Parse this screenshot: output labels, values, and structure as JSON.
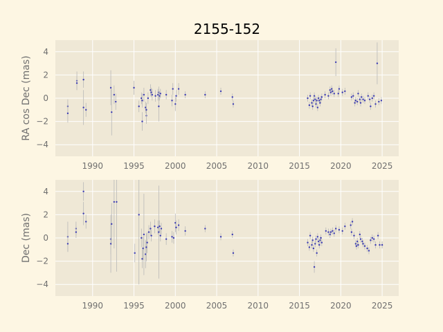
{
  "chart_data": {
    "title": "2155-152",
    "colors": {
      "figure_bg": "#fdf6e3",
      "axes_bg": "#efe8d6",
      "grid": "#ffffff",
      "point": "#3b3bb3",
      "errorbar": "#b8b8b8",
      "text": "#6f6f6f"
    },
    "grid": true,
    "panels": [
      {
        "type": "scatter",
        "ylabel": "RA cos Dec (mas)",
        "xlim": [
          1985.5,
          2027
        ],
        "ylim": [
          -5,
          5
        ],
        "xticks": [
          1990,
          1995,
          2000,
          2005,
          2010,
          2015,
          2020,
          2025
        ],
        "yticks": [
          -4,
          -2,
          0,
          2,
          4
        ],
        "points": [
          [
            1987.0,
            -0.7,
            0.6
          ],
          [
            1987.0,
            -1.3,
            0.8
          ],
          [
            1988.1,
            1.5,
            0.8
          ],
          [
            1988.1,
            1.3,
            0.6
          ],
          [
            1988.9,
            1.6,
            0.7
          ],
          [
            1988.9,
            -0.8,
            1.5
          ],
          [
            1989.2,
            -1.0,
            0.6
          ],
          [
            1992.2,
            0.9,
            1.5
          ],
          [
            1992.3,
            -1.2,
            2.0
          ],
          [
            1992.6,
            0.3,
            0.8
          ],
          [
            1992.8,
            -0.3,
            0.7
          ],
          [
            1995.0,
            0.9,
            0.6
          ],
          [
            1995.6,
            -0.7,
            0.5
          ],
          [
            1995.9,
            0.0,
            0.5
          ],
          [
            1996.0,
            -0.2,
            0.6
          ],
          [
            1996.0,
            -2.0,
            0.8
          ],
          [
            1996.2,
            0.3,
            0.6
          ],
          [
            1996.4,
            -0.8,
            0.5
          ],
          [
            1996.5,
            -1.5,
            0.7
          ],
          [
            1996.5,
            -1.0,
            0.6
          ],
          [
            1996.7,
            0.0,
            0.5
          ],
          [
            1997.0,
            0.7,
            0.5
          ],
          [
            1997.1,
            0.5,
            0.4
          ],
          [
            1997.2,
            0.3,
            0.5
          ],
          [
            1997.6,
            0.2,
            0.5
          ],
          [
            1997.9,
            0.3,
            0.5
          ],
          [
            1998.0,
            0.5,
            0.5
          ],
          [
            1998.0,
            -0.7,
            1.3
          ],
          [
            1998.1,
            0.2,
            0.4
          ],
          [
            1998.2,
            0.4,
            0.4
          ],
          [
            1998.9,
            0.3,
            0.4
          ],
          [
            1999.6,
            -0.2,
            0.5
          ],
          [
            1999.7,
            0.8,
            0.5
          ],
          [
            2000.0,
            -0.5,
            0.6
          ],
          [
            2000.1,
            0.2,
            0.5
          ],
          [
            2000.4,
            0.8,
            0.5
          ],
          [
            2001.2,
            0.3,
            0.3
          ],
          [
            2003.6,
            0.3,
            0.3
          ],
          [
            2005.5,
            0.6,
            0.3
          ],
          [
            2006.9,
            0.1,
            0.3
          ],
          [
            2007.0,
            -0.5,
            0.3
          ],
          [
            2016.0,
            0.0,
            0.3
          ],
          [
            2016.2,
            -0.6,
            0.3
          ],
          [
            2016.3,
            0.2,
            0.3
          ],
          [
            2016.5,
            -0.4,
            0.3
          ],
          [
            2016.6,
            -0.7,
            0.3
          ],
          [
            2016.7,
            -0.2,
            0.3
          ],
          [
            2016.8,
            0.2,
            0.3
          ],
          [
            2016.9,
            -0.1,
            0.3
          ],
          [
            2017.0,
            -0.5,
            0.3
          ],
          [
            2017.1,
            -0.2,
            0.3
          ],
          [
            2017.2,
            -0.8,
            0.3
          ],
          [
            2017.3,
            0.0,
            0.3
          ],
          [
            2017.4,
            -0.2,
            0.3
          ],
          [
            2017.5,
            -0.4,
            0.3
          ],
          [
            2017.6,
            -0.1,
            0.3
          ],
          [
            2017.7,
            0.1,
            0.3
          ],
          [
            2018.1,
            0.3,
            0.3
          ],
          [
            2018.5,
            0.2,
            0.3
          ],
          [
            2018.7,
            0.7,
            0.3
          ],
          [
            2018.8,
            0.5,
            0.3
          ],
          [
            2018.9,
            0.8,
            0.3
          ],
          [
            2019.0,
            0.6,
            0.3
          ],
          [
            2019.2,
            0.4,
            0.3
          ],
          [
            2019.4,
            3.1,
            1.2
          ],
          [
            2019.7,
            0.4,
            0.3
          ],
          [
            2019.8,
            0.8,
            0.3
          ],
          [
            2020.2,
            0.5,
            0.3
          ],
          [
            2020.5,
            0.6,
            0.3
          ],
          [
            2021.3,
            0.1,
            0.3
          ],
          [
            2021.5,
            0.2,
            0.3
          ],
          [
            2021.7,
            -0.4,
            0.3
          ],
          [
            2021.8,
            -0.2,
            0.3
          ],
          [
            2022.0,
            -0.3,
            0.3
          ],
          [
            2022.1,
            0.4,
            0.3
          ],
          [
            2022.3,
            -0.1,
            0.3
          ],
          [
            2022.4,
            -0.4,
            0.3
          ],
          [
            2022.5,
            0.1,
            0.3
          ],
          [
            2022.7,
            -0.1,
            0.3
          ],
          [
            2022.9,
            -0.2,
            0.3
          ],
          [
            2023.3,
            0.2,
            0.3
          ],
          [
            2023.5,
            -0.1,
            0.3
          ],
          [
            2023.6,
            -0.7,
            0.3
          ],
          [
            2023.8,
            0.0,
            0.3
          ],
          [
            2024.0,
            0.2,
            0.3
          ],
          [
            2024.2,
            -0.5,
            0.3
          ],
          [
            2024.4,
            3.0,
            1.8
          ],
          [
            2024.6,
            -0.3,
            0.3
          ],
          [
            2024.9,
            -0.2,
            0.3
          ]
        ]
      },
      {
        "type": "scatter",
        "ylabel": "Dec (mas)",
        "xlim": [
          1985.5,
          2027
        ],
        "ylim": [
          -5,
          5
        ],
        "xticks": [
          1990,
          1995,
          2000,
          2005,
          2010,
          2015,
          2020,
          2025
        ],
        "yticks": [
          -4,
          -2,
          0,
          2,
          4
        ],
        "points": [
          [
            1987.0,
            0.1,
            1.3
          ],
          [
            1987.0,
            -0.5,
            0.7
          ],
          [
            1988.0,
            0.8,
            0.6
          ],
          [
            1988.0,
            0.5,
            0.5
          ],
          [
            1988.9,
            4.0,
            0.8
          ],
          [
            1988.9,
            2.1,
            1.0
          ],
          [
            1989.2,
            1.4,
            0.6
          ],
          [
            1992.2,
            -0.1,
            1.3
          ],
          [
            1992.2,
            -0.5,
            2.5
          ],
          [
            1992.3,
            1.2,
            1.8
          ],
          [
            1992.6,
            3.1,
            4.0
          ],
          [
            1992.9,
            3.1,
            6.0
          ],
          [
            1995.1,
            -1.3,
            0.8
          ],
          [
            1995.6,
            2.0,
            6.0
          ],
          [
            1995.9,
            0.0,
            0.8
          ],
          [
            1996.0,
            -1.8,
            0.8
          ],
          [
            1996.1,
            -0.9,
            1.0
          ],
          [
            1996.2,
            0.3,
            3.5
          ],
          [
            1996.4,
            -1.4,
            1.2
          ],
          [
            1996.5,
            -0.8,
            1.2
          ],
          [
            1996.6,
            -0.4,
            0.9
          ],
          [
            1996.8,
            0.5,
            0.6
          ],
          [
            1997.0,
            0.8,
            0.6
          ],
          [
            1997.1,
            0.2,
            0.5
          ],
          [
            1997.5,
            1.0,
            0.6
          ],
          [
            1997.9,
            0.9,
            0.6
          ],
          [
            1998.0,
            0.5,
            4.0
          ],
          [
            1998.1,
            1.0,
            0.5
          ],
          [
            1998.2,
            0.2,
            0.5
          ],
          [
            1998.3,
            0.8,
            0.5
          ],
          [
            1998.9,
            -0.1,
            0.5
          ],
          [
            1999.6,
            0.1,
            0.5
          ],
          [
            1999.8,
            0.0,
            0.5
          ],
          [
            2000.0,
            1.3,
            0.8
          ],
          [
            2000.1,
            0.9,
            0.6
          ],
          [
            2000.4,
            1.1,
            0.5
          ],
          [
            2001.2,
            0.6,
            0.4
          ],
          [
            2003.6,
            0.8,
            0.3
          ],
          [
            2005.5,
            0.1,
            0.3
          ],
          [
            2006.9,
            0.3,
            0.3
          ],
          [
            2007.0,
            -1.3,
            0.3
          ],
          [
            2016.0,
            -0.4,
            0.3
          ],
          [
            2016.2,
            -0.8,
            0.3
          ],
          [
            2016.3,
            0.2,
            0.3
          ],
          [
            2016.5,
            -0.6,
            0.3
          ],
          [
            2016.6,
            -0.2,
            0.3
          ],
          [
            2016.7,
            -0.9,
            0.3
          ],
          [
            2016.8,
            -2.5,
            0.5
          ],
          [
            2016.9,
            -0.5,
            0.3
          ],
          [
            2017.0,
            -0.1,
            0.3
          ],
          [
            2017.1,
            -1.3,
            0.3
          ],
          [
            2017.2,
            0.1,
            0.3
          ],
          [
            2017.3,
            -0.3,
            0.3
          ],
          [
            2017.4,
            -0.6,
            0.3
          ],
          [
            2017.5,
            -0.2,
            0.3
          ],
          [
            2017.6,
            0.0,
            0.3
          ],
          [
            2017.7,
            -0.4,
            0.3
          ],
          [
            2018.2,
            0.6,
            0.3
          ],
          [
            2018.5,
            0.5,
            0.3
          ],
          [
            2018.7,
            0.3,
            0.3
          ],
          [
            2018.8,
            0.5,
            0.3
          ],
          [
            2019.0,
            0.6,
            0.3
          ],
          [
            2019.2,
            0.4,
            0.3
          ],
          [
            2019.4,
            0.8,
            0.3
          ],
          [
            2019.8,
            0.7,
            0.3
          ],
          [
            2020.2,
            0.6,
            0.3
          ],
          [
            2020.5,
            1.0,
            0.3
          ],
          [
            2021.2,
            1.1,
            0.3
          ],
          [
            2021.3,
            0.5,
            0.3
          ],
          [
            2021.4,
            1.4,
            0.3
          ],
          [
            2021.6,
            0.2,
            0.3
          ],
          [
            2021.8,
            -0.5,
            0.3
          ],
          [
            2021.9,
            -0.7,
            0.3
          ],
          [
            2022.0,
            -0.3,
            0.3
          ],
          [
            2022.1,
            -0.6,
            0.3
          ],
          [
            2022.3,
            0.3,
            0.3
          ],
          [
            2022.4,
            -0.1,
            0.3
          ],
          [
            2022.6,
            -0.3,
            0.3
          ],
          [
            2022.7,
            -0.5,
            0.3
          ],
          [
            2022.9,
            -0.7,
            0.3
          ],
          [
            2023.2,
            -0.9,
            0.3
          ],
          [
            2023.4,
            -1.1,
            0.3
          ],
          [
            2023.6,
            -0.2,
            0.3
          ],
          [
            2023.8,
            0.0,
            0.3
          ],
          [
            2024.0,
            -0.1,
            0.3
          ],
          [
            2024.2,
            -0.6,
            0.3
          ],
          [
            2024.5,
            0.2,
            0.3
          ],
          [
            2024.7,
            -0.6,
            0.3
          ],
          [
            2025.0,
            -0.6,
            0.3
          ]
        ]
      }
    ]
  }
}
